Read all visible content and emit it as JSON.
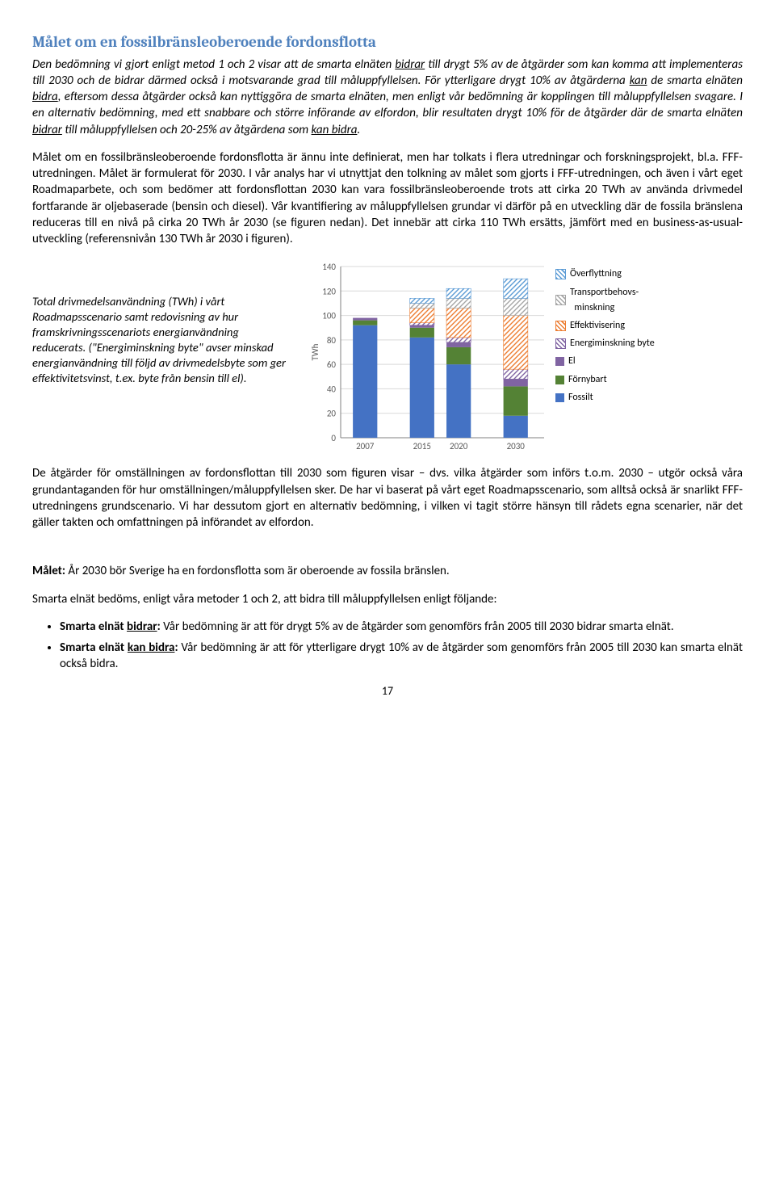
{
  "heading": "Målet om en fossilbränsleoberoende fordonsflotta",
  "p1_pre": "Den bedömning vi gjort enligt metod 1 och 2 visar att de smarta elnäten ",
  "p1_u1": "bidrar",
  "p1_mid1": " till drygt 5% av de åtgärder som kan komma att implementeras till 2030 och de bidrar därmed också i motsvarande grad till måluppfyllelsen. För ytterligare drygt 10% av åtgärderna ",
  "p1_u2": "kan",
  "p1_mid2": " de smarta elnäten ",
  "p1_u3": "bidra",
  "p1_mid3": ", eftersom dessa åtgärder också kan nyttiggöra de smarta elnäten, men enligt vår bedömning är kopplingen till måluppfyllelsen svagare. I en alternativ bedömning, med ett snabbare och större införande av elfordon, blir resultaten drygt 10% för de åtgärder där de smarta elnäten ",
  "p1_u4": "bidrar",
  "p1_mid4": " till måluppfyllelsen och 20-25% av åtgärdena som ",
  "p1_u5": "kan bidra",
  "p1_end": ".",
  "p2": "Målet om en fossilbränsleoberoende fordonsflotta är ännu inte definierat, men har tolkats i flera utredningar och forskningsprojekt, bl.a. FFF-utredningen. Målet är formulerat för 2030. I vår analys har vi utnyttjat den tolkning av målet som gjorts i FFF-utredningen, och även i vårt eget Roadmaparbete, och som bedömer att fordonsflottan 2030 kan vara fossilbränsleoberoende trots att cirka 20 TWh av använda drivmedel fortfarande är oljebaserade (bensin och diesel). Vår kvantifiering av måluppfyllelsen grundar vi därför på en utveckling där de fossila bränslena reduceras till en nivå på cirka 20 TWh år 2030 (se figuren nedan). Det innebär att cirka 110 TWh ersätts, jämfört med en business-as-usual-utveckling (referensnivån 130 TWh år 2030 i figuren).",
  "chart_caption": "Total drivmedelsanvändning (TWh) i vårt Roadmapsscenario samt redovisning av hur framskrivningsscenariots energianvändning reducerats. (\"Energiminskning byte\" avser minskad energianvändning till följd av drivmedelsbyte som ger effektivitetsvinst, t.ex. byte från bensin till el).",
  "chart": {
    "type": "stacked-bar",
    "ylabel": "TWh",
    "ylim": [
      0,
      140
    ],
    "ytick_step": 20,
    "categories": [
      "2007",
      "2015",
      "2020",
      "2030"
    ],
    "grid_color": "#d9d9d9",
    "axis_color": "#808080",
    "series": [
      {
        "key": "fossilt",
        "label": "Fossilt",
        "color": "#4472c4",
        "pattern": "solid",
        "values": [
          92,
          82,
          60,
          18
        ]
      },
      {
        "key": "fornybart",
        "label": "Förnybart",
        "color": "#548235",
        "pattern": "solid",
        "values": [
          4,
          8,
          14,
          24
        ]
      },
      {
        "key": "el",
        "label": "El",
        "color": "#8064a2",
        "pattern": "solid",
        "values": [
          2,
          2,
          4,
          6
        ]
      },
      {
        "key": "ebyte",
        "label": "Energiminskning byte",
        "color": "#8064a2",
        "pattern": "hatch",
        "values": [
          0,
          2,
          4,
          8
        ]
      },
      {
        "key": "effekt",
        "label": "Effektivisering",
        "color": "#ed7d31",
        "pattern": "hatch",
        "values": [
          0,
          12,
          24,
          44
        ]
      },
      {
        "key": "tminsk",
        "label": "Transportbehovs-minskning",
        "color": "#a5a5a5",
        "pattern": "hatch",
        "values": [
          0,
          4,
          8,
          14
        ]
      },
      {
        "key": "overfl",
        "label": "Överflyttning",
        "color": "#5b9bd5",
        "pattern": "hatch",
        "values": [
          0,
          4,
          8,
          16
        ]
      }
    ],
    "legend_order": [
      "overfl",
      "tminsk",
      "effekt",
      "ebyte",
      "el",
      "fornybart",
      "fossilt"
    ]
  },
  "p3": "De åtgärder för omställningen av fordonsflottan till 2030 som figuren visar – dvs. vilka åtgärder som införs t.o.m. 2030 – utgör också våra grundantaganden för hur omställningen/måluppfyllelsen sker. De har vi baserat på vårt eget Roadmapsscenario, som alltså också är snarlikt FFF-utredningens grundscenario. Vi har dessutom gjort en alternativ bedömning, i vilken vi tagit större hänsyn till rådets egna scenarier, när det gäller takten och omfattningen på införandet av elfordon.",
  "goal_label": "Målet:",
  "goal_text": " År 2030 bör Sverige ha en fordonsflotta som är oberoende av fossila bränslen.",
  "p4": "Smarta elnät bedöms, enligt våra metoder 1 och 2, att bidra till måluppfyllelsen enligt följande:",
  "b1_strong": "Smarta elnät ",
  "b1_u": "bidrar",
  "b1_colon": ":",
  "b1_rest": " Vår bedömning är att för drygt 5% av de åtgärder som genomförs från 2005 till 2030 bidrar smarta elnät.",
  "b2_strong1": "Smarta elnät ",
  "b2_u": "kan bidra",
  "b2_colon": ":",
  "b2_rest": " Vår bedömning är att för ytterligare drygt 10% av de åtgärder som genomförs från 2005 till 2030 kan smarta elnät också bidra.",
  "page_number": "17"
}
